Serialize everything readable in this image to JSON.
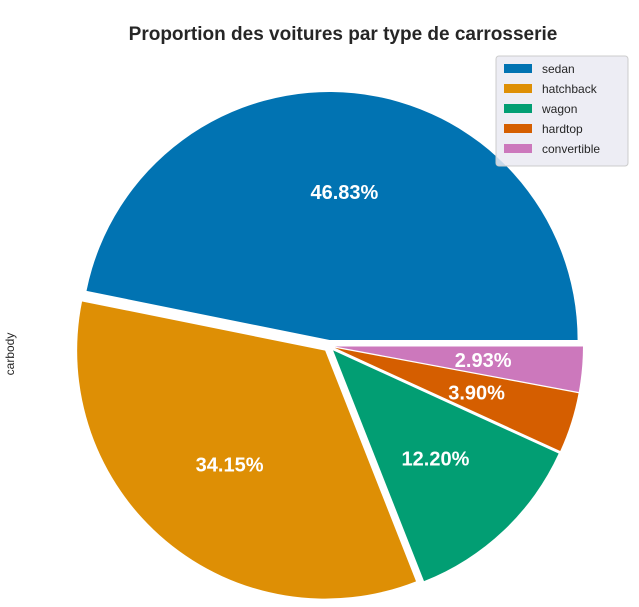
{
  "chart_data": {
    "type": "pie",
    "title": "Proportion des voitures par type de carrosserie",
    "ylabel": "carbody",
    "categories": [
      "sedan",
      "hatchback",
      "wagon",
      "hardtop",
      "convertible"
    ],
    "values": [
      46.83,
      34.15,
      12.2,
      3.9,
      2.93
    ],
    "labels": [
      "46.83%",
      "34.15%",
      "12.20%",
      "3.90%",
      "2.93%"
    ],
    "colors": [
      "#0173b2",
      "#de8f05",
      "#029e73",
      "#d55e00",
      "#cc78bc"
    ],
    "legend_placement": "top-right",
    "start_angle_deg": 0,
    "direction": "counterclockwise",
    "explode": true
  }
}
